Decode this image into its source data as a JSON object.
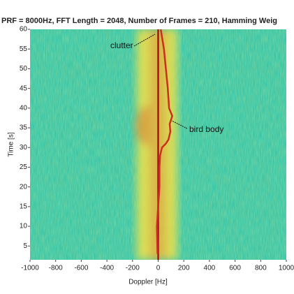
{
  "chart_data": {
    "type": "line",
    "title": "PRF = 8000Hz, FFT Length = 2048, Number of Frames = 210, Hamming Weig",
    "x_label": "Doppler [Hz]",
    "y_label": "Time [s]",
    "xlim": [
      -1000,
      1000
    ],
    "xticks": [
      -1000,
      -800,
      -600,
      -400,
      -200,
      0,
      200,
      400,
      600,
      800,
      1000
    ],
    "ylim": [
      1.5,
      60
    ],
    "yticks": [
      5,
      10,
      15,
      20,
      25,
      30,
      35,
      40,
      45,
      50,
      55,
      60
    ],
    "series": [
      {
        "color": "#a8141c",
        "x": [
          0,
          0
        ],
        "values": [
          1.5,
          60
        ]
      },
      {
        "color": "#c9301e",
        "x": [
          -5,
          -10,
          0,
          10,
          10,
          15,
          30,
          60,
          80,
          95,
          90,
          110,
          85,
          75,
          60,
          45,
          30,
          20
        ],
        "values": [
          3,
          10,
          15,
          20,
          25,
          28,
          30,
          31,
          32,
          34,
          36,
          38,
          40,
          45,
          50,
          55,
          58,
          60
        ]
      }
    ],
    "annotations": [
      "clutter",
      "bird body"
    ]
  }
}
